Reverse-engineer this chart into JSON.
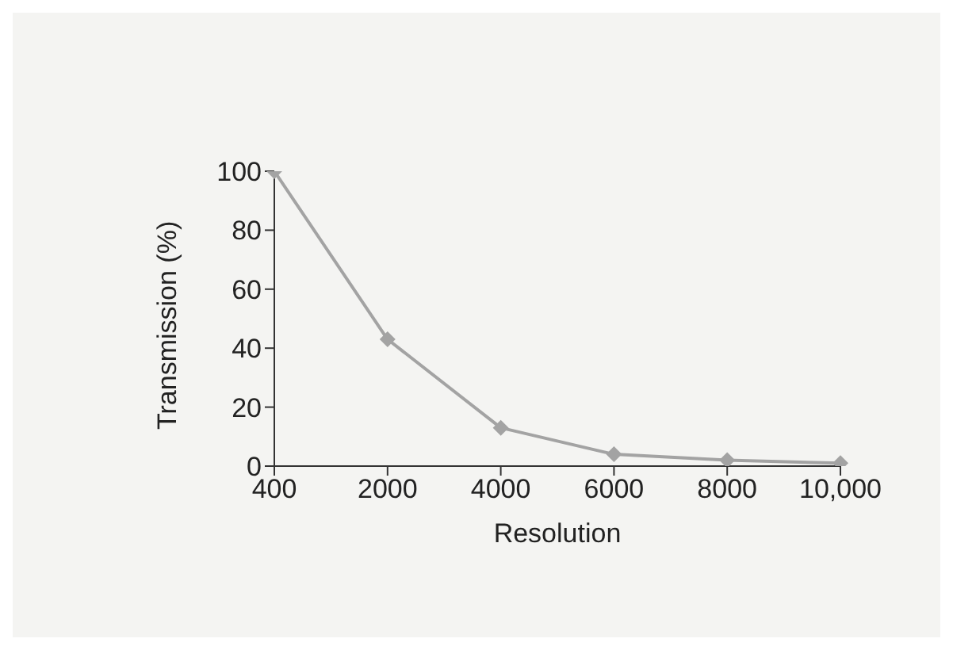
{
  "chart_data": {
    "type": "line",
    "xlabel": "Resolution",
    "ylabel": "Transmission (%)",
    "categories": [
      "400",
      "2000",
      "4000",
      "6000",
      "8000",
      "10,000"
    ],
    "series": [
      {
        "color": "#a3a3a3",
        "values": [
          100,
          43,
          13,
          4,
          2,
          1
        ]
      }
    ],
    "ylim": [
      0,
      100
    ],
    "yticks": [
      0,
      20,
      40,
      60,
      80,
      100
    ],
    "grid": false,
    "legend": false,
    "marker": "diamond",
    "line_style": "solid"
  }
}
